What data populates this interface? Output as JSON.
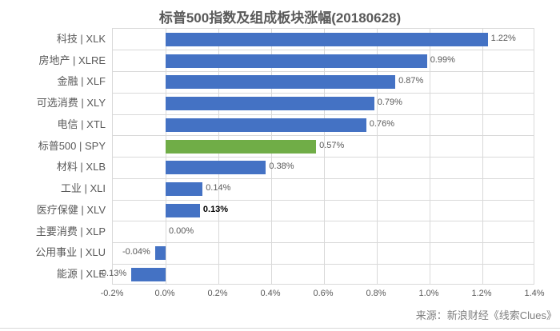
{
  "title": "标普500指数及组成板块涨幅(20180628)",
  "source": "来源：新浪财经《线索Clues》",
  "colors": {
    "bar_default": "#4472C4",
    "bar_highlight": "#70AD47",
    "grid": "#d9d9d9",
    "axis_text": "#595959",
    "title_text": "#595959",
    "emphasis_text": "#000000",
    "source_text": "#7f7f7f",
    "bottom_rule": "#d9d9d9"
  },
  "chart_data": {
    "type": "bar",
    "orientation": "horizontal",
    "title": "标普500指数及组成板块涨幅(20180628)",
    "categories": [
      "科技 | XLK",
      "房地产 | XLRE",
      "金融 | XLF",
      "可选消费 | XLY",
      "电信 | XTL",
      "标普500 | SPY",
      "材料 | XLB",
      "工业 | XLI",
      "医疗保健 | XLV",
      "主要消费 | XLP",
      "公用事业 | XLU",
      "能源 | XLE"
    ],
    "values": [
      1.22,
      0.99,
      0.87,
      0.79,
      0.76,
      0.57,
      0.38,
      0.14,
      0.13,
      0.0,
      -0.04,
      -0.13
    ],
    "value_labels": [
      "1.22%",
      "0.99%",
      "0.87%",
      "0.79%",
      "0.76%",
      "0.57%",
      "0.38%",
      "0.14%",
      "0.13%",
      "0.00%",
      "-0.04%",
      "-0.13%"
    ],
    "highlight_index": 5,
    "emphasis_label_index": 8,
    "x_ticks": [
      "-0.2%",
      "0.0%",
      "0.2%",
      "0.4%",
      "0.6%",
      "0.8%",
      "1.0%",
      "1.2%",
      "1.4%"
    ],
    "xlim": [
      -0.2,
      1.4
    ],
    "xlabel": "",
    "ylabel": "",
    "grid": true,
    "legend": "none",
    "unit": "%"
  }
}
